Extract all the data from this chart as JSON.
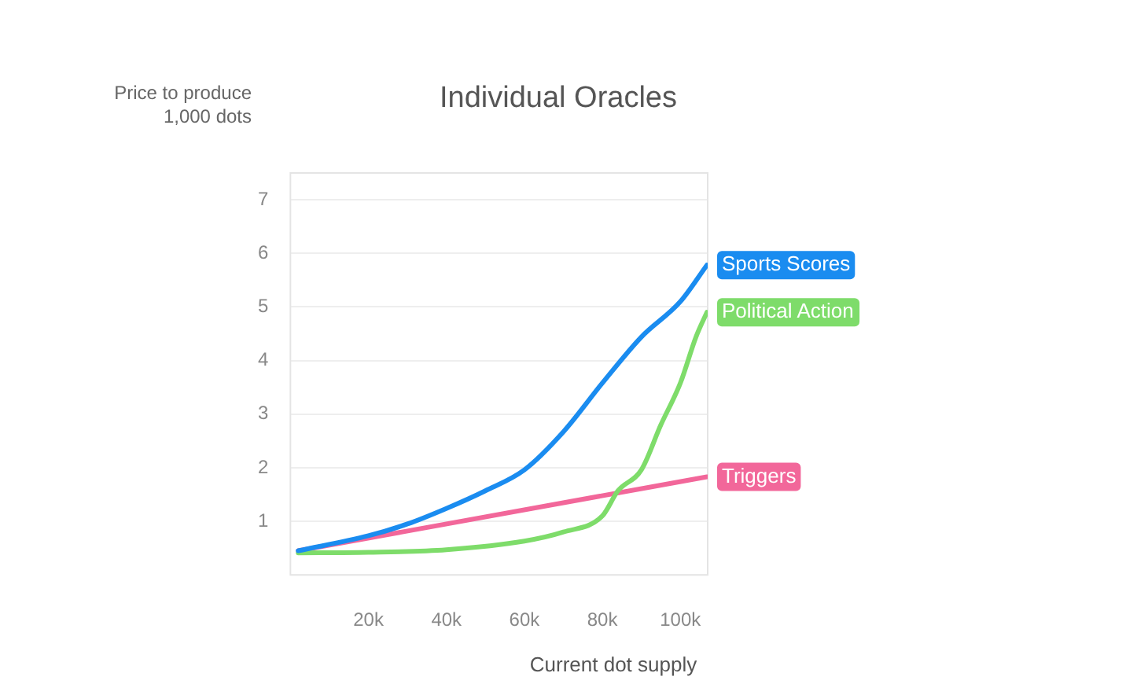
{
  "chart_data": {
    "type": "line",
    "title": "Individual Oracles",
    "ylabel": "Price to produce 1,000 dots",
    "xlabel": "Current dot supply",
    "xlim": [
      0,
      107000
    ],
    "xticks": [
      {
        "value": 20000,
        "label": "20k"
      },
      {
        "value": 40000,
        "label": "40k"
      },
      {
        "value": 60000,
        "label": "60k"
      },
      {
        "value": 80000,
        "label": "80k"
      },
      {
        "value": 100000,
        "label": "100k"
      }
    ],
    "ylim": [
      0,
      7.5
    ],
    "yticks": [
      1,
      2,
      3,
      4,
      5,
      6,
      7
    ],
    "grid": "y",
    "legend": false,
    "marker": "none",
    "line_style": "solid",
    "series": [
      {
        "name": "Sports Scores",
        "color": "#1a8cf0",
        "x": [
          2000,
          20000,
          30000,
          40000,
          50000,
          60000,
          70000,
          80000,
          90000,
          100000,
          106800
        ],
        "values": [
          0.45,
          0.73,
          0.95,
          1.24,
          1.57,
          1.96,
          2.67,
          3.58,
          4.44,
          5.1,
          5.78
        ]
      },
      {
        "name": "Political Action",
        "color": "#7edc6a",
        "x": [
          2000,
          20000,
          40000,
          60000,
          70000,
          80000,
          84000,
          90000,
          95000,
          100000,
          104000,
          106800
        ],
        "values": [
          0.41,
          0.42,
          0.47,
          0.63,
          0.8,
          1.1,
          1.57,
          1.96,
          2.8,
          3.58,
          4.44,
          4.9
        ]
      },
      {
        "name": "Triggers",
        "color": "#f2679a",
        "x": [
          2000,
          106800
        ],
        "values": [
          0.45,
          1.83
        ]
      }
    ]
  }
}
